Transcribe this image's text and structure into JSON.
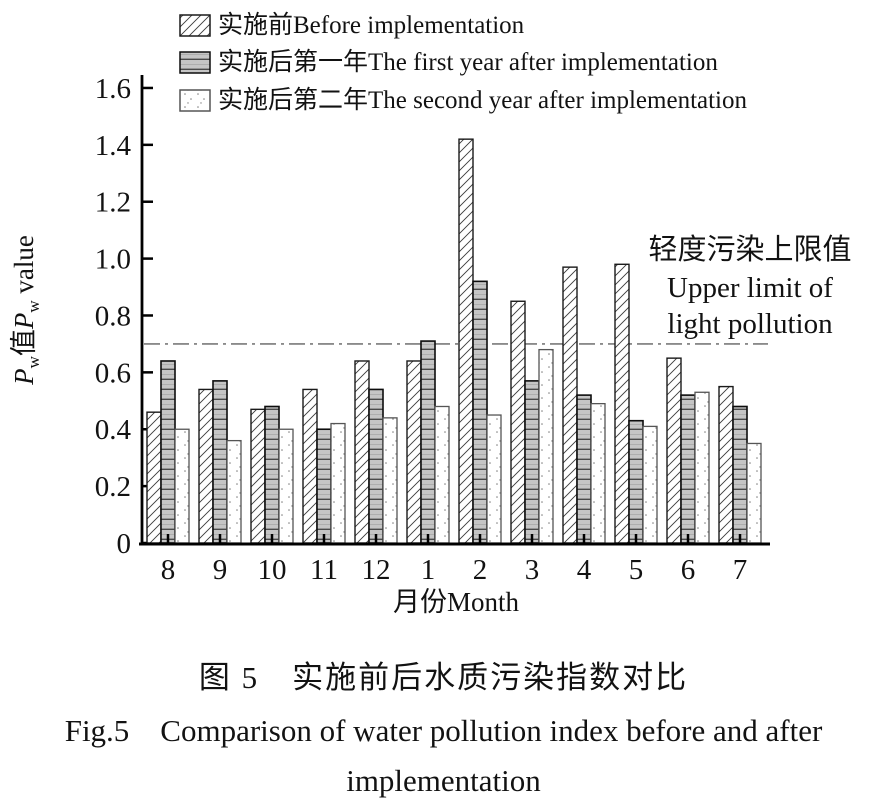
{
  "figure": {
    "caption_zh": "图 5　实施前后水质污染指数对比",
    "caption_en_line1": "Fig.5    Comparison of water pollution index before and after",
    "caption_en_line2": "implementation"
  },
  "chart_data": {
    "type": "bar",
    "title": "",
    "xlabel": "月份Month",
    "ylabel": "Pw值Pw value",
    "ylabel_rich": [
      {
        "t": "P",
        "style": "italic"
      },
      {
        "t": "w",
        "style": "sub"
      },
      {
        "t": "值",
        "style": "normal"
      },
      {
        "t": "P",
        "style": "italic"
      },
      {
        "t": "w",
        "style": "sub"
      },
      {
        "t": " value",
        "style": "normal"
      }
    ],
    "ylim": [
      0,
      1.6
    ],
    "yticks": [
      "0",
      "0.2",
      "0.4",
      "0.6",
      "0.8",
      "1.0",
      "1.2",
      "1.4",
      "1.6"
    ],
    "categories": [
      "8",
      "9",
      "10",
      "11",
      "12",
      "1",
      "2",
      "3",
      "4",
      "5",
      "6",
      "7"
    ],
    "series": [
      {
        "name": "实施前Before implementation",
        "pattern": "diagonal-hatch",
        "values": [
          0.46,
          0.54,
          0.47,
          0.54,
          0.64,
          0.64,
          1.42,
          0.85,
          0.97,
          0.98,
          0.65,
          0.55
        ]
      },
      {
        "name": "实施后第一年The first year after implementation",
        "pattern": "gray-horizontal-lines",
        "values": [
          0.64,
          0.57,
          0.48,
          0.4,
          0.54,
          0.71,
          0.92,
          0.57,
          0.52,
          0.43,
          0.52,
          0.48
        ]
      },
      {
        "name": "实施后第二年The second year after implementation",
        "pattern": "white-dots",
        "values": [
          0.4,
          0.36,
          0.4,
          0.42,
          0.44,
          0.48,
          0.45,
          0.68,
          0.49,
          0.41,
          0.53,
          0.35
        ]
      }
    ],
    "reference_line": {
      "value": 0.7,
      "style": "dash-dot",
      "label_lines": [
        "轻度污染上限值",
        "Upper limit of",
        "light pollution"
      ]
    },
    "legend_position": "top-left",
    "grid": false,
    "colors": {
      "axis": "#000000",
      "text": "#121212",
      "bar_gray_fill": "#c5c5c5",
      "hatch_line": "#3a3a3a",
      "dot_color": "#808080",
      "reference_line": "#7a7a7a"
    }
  }
}
